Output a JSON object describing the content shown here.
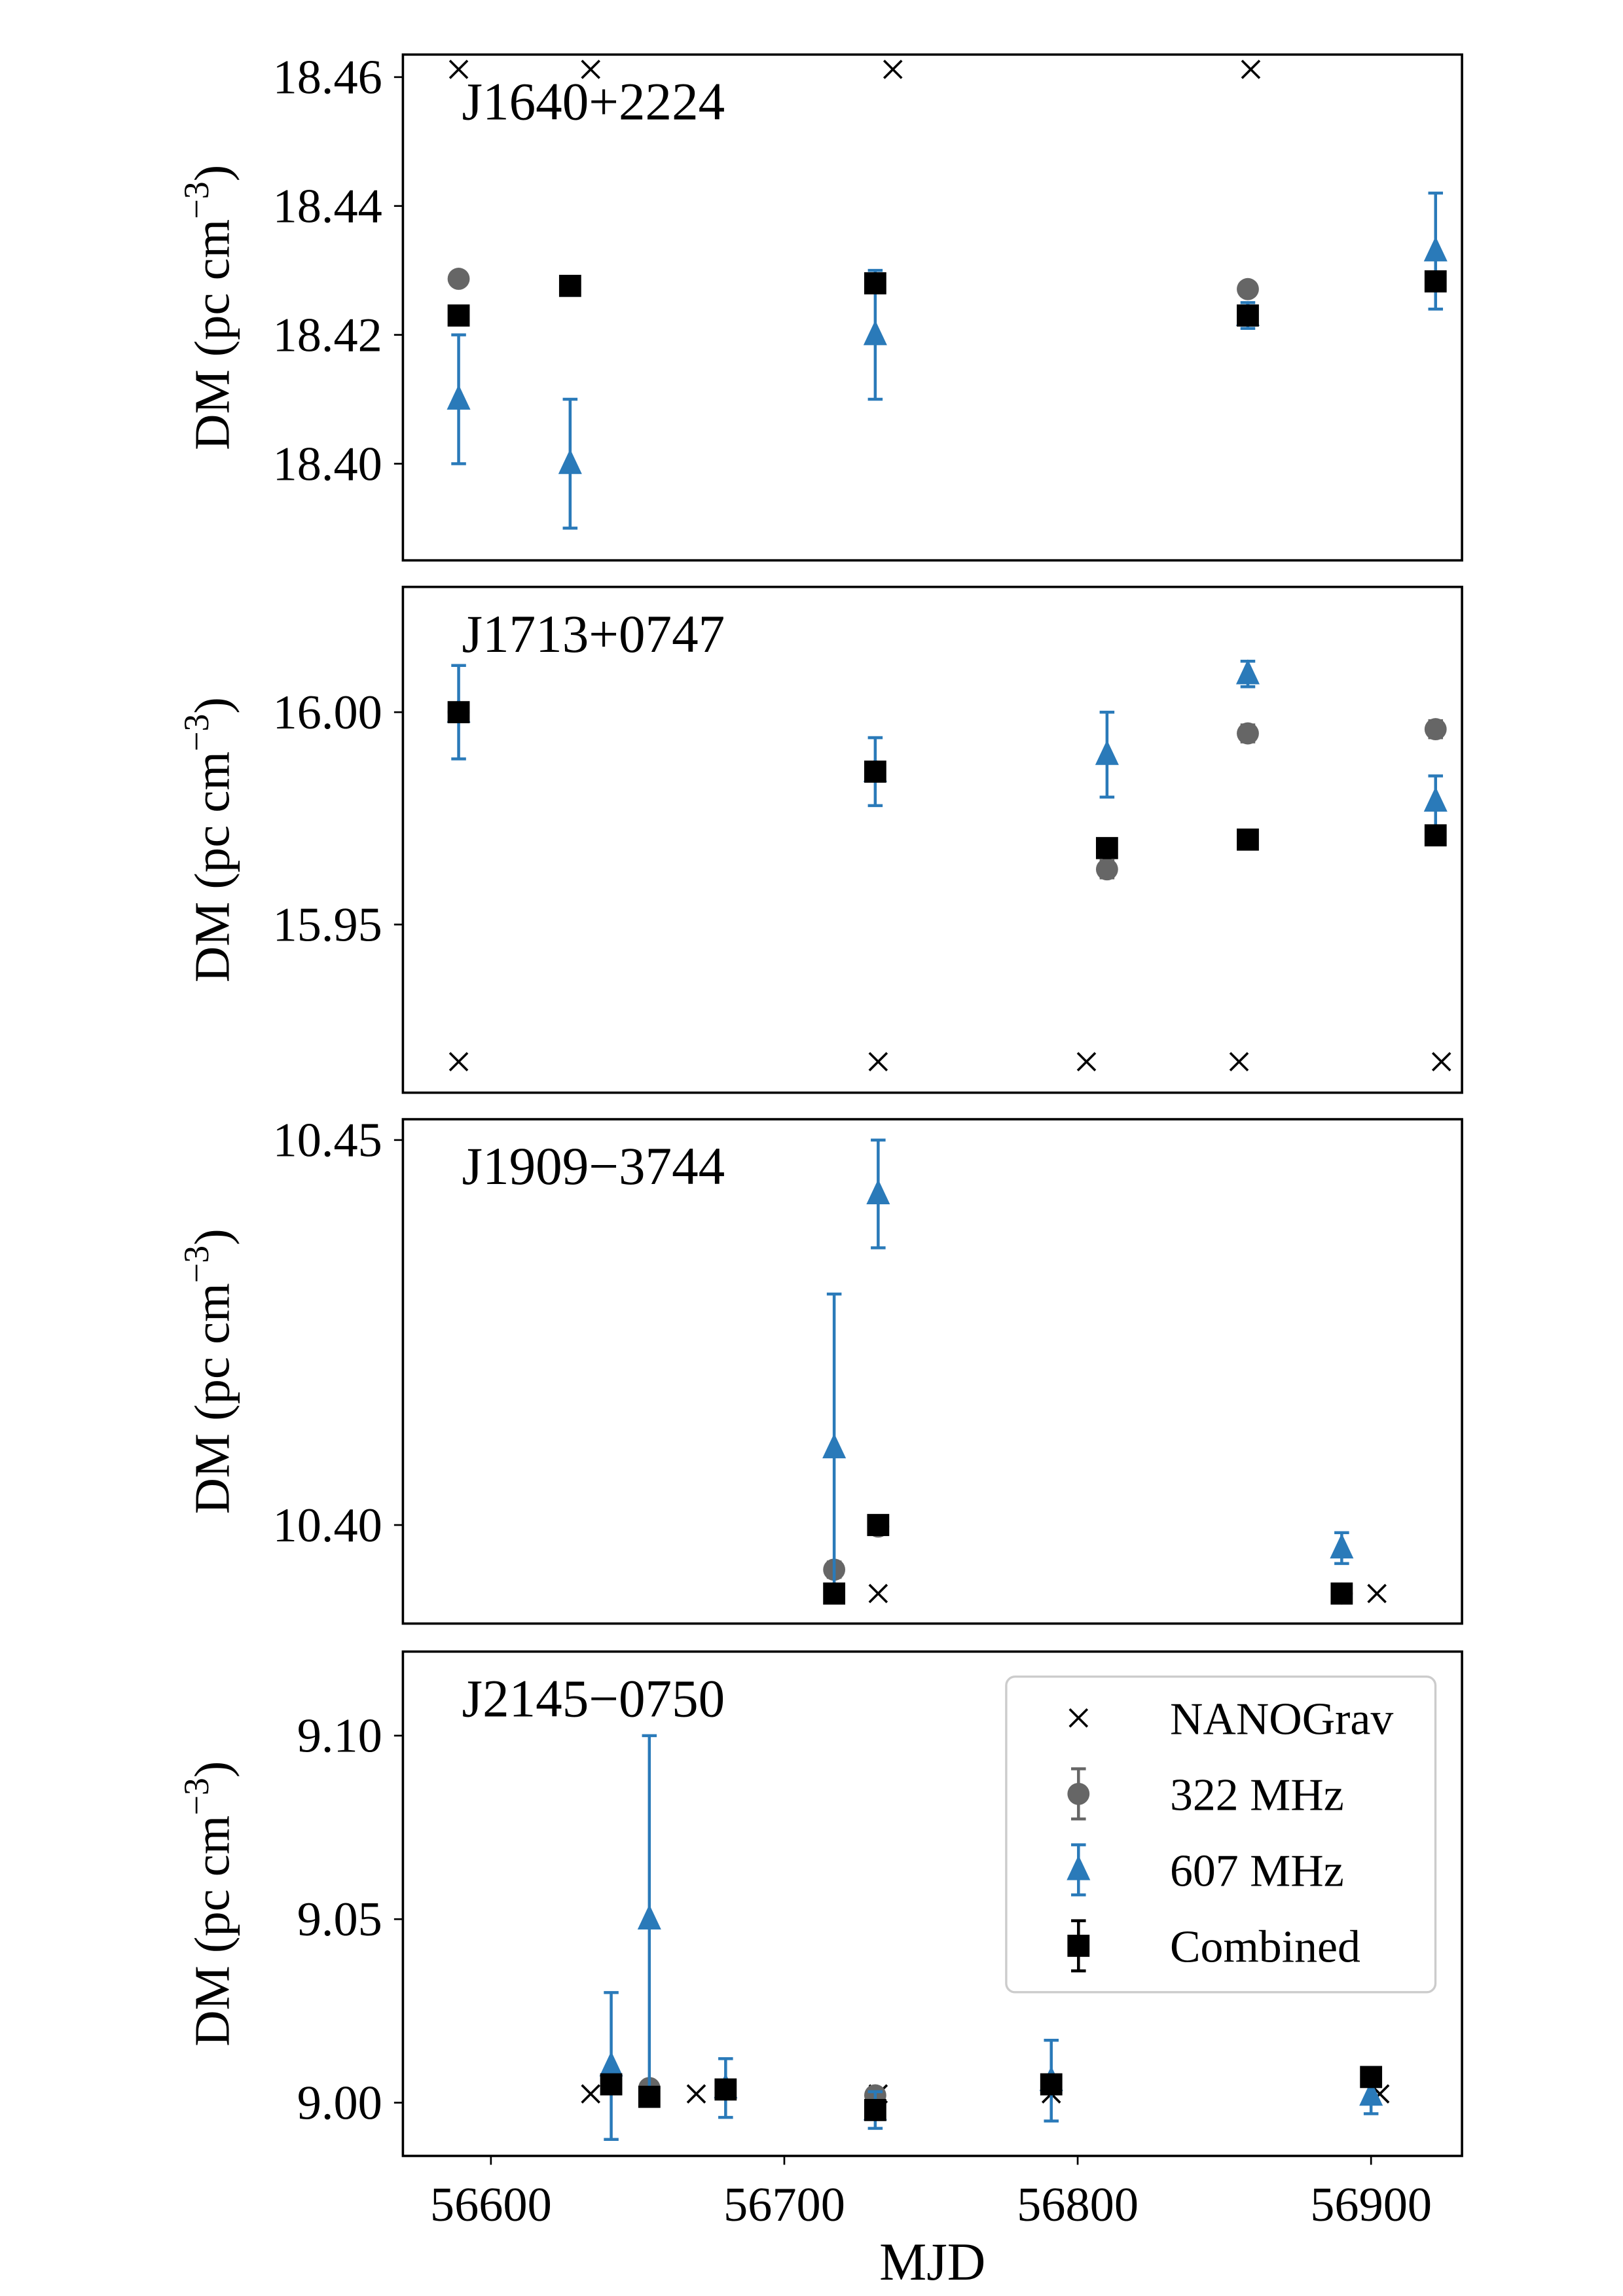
{
  "colors": {
    "nanograv": "#000000",
    "mhz322": "#666666",
    "mhz607": "#2a7ab9",
    "combined": "#000000"
  },
  "legend": {
    "placement": "upper-right of bottom panel",
    "entries": [
      {
        "key": "nanograv",
        "label": "NANOGrav",
        "marker": "x"
      },
      {
        "key": "mhz322",
        "label": "322 MHz",
        "marker": "circle"
      },
      {
        "key": "mhz607",
        "label": "607 MHz",
        "marker": "triangle"
      },
      {
        "key": "combined",
        "label": "Combined",
        "marker": "square"
      }
    ]
  },
  "shared": {
    "xlabel": "MJD",
    "ylabel": "DM (pc cm−3)",
    "xlim": [
      56570,
      56931
    ],
    "xticks": [
      56600,
      56700,
      56800,
      56900
    ]
  },
  "chart_data": [
    {
      "type": "scatter",
      "title": "J1640+2224",
      "ylim": [
        18.385,
        18.4635
      ],
      "yticks": [
        "18.40",
        "18.42",
        "18.44",
        "18.46"
      ],
      "series": [
        {
          "key": "nanograv",
          "points": [
            [
              56589,
              18.4612
            ],
            [
              56634,
              18.4612
            ],
            [
              56737,
              18.4612
            ],
            [
              56859,
              18.4612
            ]
          ]
        },
        {
          "key": "mhz322",
          "points": [
            [
              56589,
              18.4287,
              0.001
            ],
            [
              56858,
              18.4271,
              0.001
            ]
          ]
        },
        {
          "key": "mhz607",
          "points": [
            [
              56589,
              18.41,
              0.01
            ],
            [
              56627,
              18.4,
              0.01
            ],
            [
              56731,
              18.42,
              0.01
            ],
            [
              56858,
              18.423,
              0.002
            ],
            [
              56922,
              18.433,
              0.009
            ]
          ]
        },
        {
          "key": "combined",
          "points": [
            [
              56589,
              18.423,
              0.001
            ],
            [
              56627,
              18.4276,
              0.001
            ],
            [
              56731,
              18.428,
              0.001
            ],
            [
              56858,
              18.423,
              0.001
            ],
            [
              56922,
              18.4283,
              0.001
            ]
          ]
        }
      ]
    },
    {
      "type": "scatter",
      "title": "J1713+0747",
      "ylim": [
        15.9104,
        16.0295
      ],
      "yticks": [
        "15.95",
        "16.00"
      ],
      "series": [
        {
          "key": "nanograv",
          "points": [
            [
              56589,
              15.9177
            ],
            [
              56732,
              15.9177
            ],
            [
              56803,
              15.9177
            ],
            [
              56855,
              15.9177
            ],
            [
              56924,
              15.9177
            ]
          ]
        },
        {
          "key": "mhz322",
          "points": [
            [
              56589,
              16.0,
              0.002
            ],
            [
              56810,
              15.963,
              0.002
            ],
            [
              56858,
              15.995,
              0.002
            ],
            [
              56922,
              15.996,
              0.002
            ]
          ]
        },
        {
          "key": "mhz607",
          "points": [
            [
              56589,
              16.0,
              0.011
            ],
            [
              56731,
              15.986,
              0.008
            ],
            [
              56810,
              15.99,
              0.01
            ],
            [
              56858,
              16.009,
              0.003
            ],
            [
              56922,
              15.979,
              0.006
            ]
          ]
        },
        {
          "key": "combined",
          "points": [
            [
              56589,
              16.0,
              0.001
            ],
            [
              56731,
              15.986,
              0.001
            ],
            [
              56810,
              15.968,
              0.001
            ],
            [
              56858,
              15.97,
              0.001
            ],
            [
              56922,
              15.971,
              0.001
            ]
          ]
        }
      ]
    },
    {
      "type": "scatter",
      "title": "J1909−3744",
      "ylim": [
        10.3872,
        10.4527
      ],
      "yticks": [
        "10.40",
        "10.45"
      ],
      "series": [
        {
          "key": "nanograv",
          "points": [
            [
              56717,
              10.3911
            ],
            [
              56732,
              10.3911
            ],
            [
              56902,
              10.3911
            ]
          ]
        },
        {
          "key": "mhz322",
          "points": [
            [
              56717,
              10.3942,
              0.001
            ],
            [
              56732,
              10.3998,
              0.001
            ],
            [
              56890,
              10.3911,
              0.001
            ]
          ]
        },
        {
          "key": "mhz607",
          "points": [
            [
              56717,
              10.41,
              0.02
            ],
            [
              56732,
              10.443,
              0.007
            ],
            [
              56890,
              10.397,
              0.002
            ]
          ]
        },
        {
          "key": "combined",
          "points": [
            [
              56717,
              10.3911,
              0.0005
            ],
            [
              56732,
              10.4,
              0.0005
            ],
            [
              56890,
              10.3911,
              0.0005
            ]
          ]
        }
      ]
    },
    {
      "type": "scatter",
      "title": "J2145−0750",
      "ylim": [
        8.9855,
        9.1229
      ],
      "yticks": [
        "9.00",
        "9.05",
        "9.10"
      ],
      "series": [
        {
          "key": "nanograv",
          "points": [
            [
              56634,
              9.0024
            ],
            [
              56670,
              9.0024
            ],
            [
              56732,
              9.0024
            ],
            [
              56791,
              9.0024
            ],
            [
              56903,
              9.0024
            ]
          ]
        },
        {
          "key": "mhz322",
          "points": [
            [
              56654,
              9.004,
              0.001
            ],
            [
              56731,
              9.002,
              0.001
            ]
          ]
        },
        {
          "key": "mhz607",
          "points": [
            [
              56641,
              9.01,
              0.02
            ],
            [
              56654,
              9.05,
              0.05
            ],
            [
              56680,
              9.004,
              0.008
            ],
            [
              56731,
              8.998,
              0.005
            ],
            [
              56791,
              9.006,
              0.011
            ],
            [
              56900,
              9.002,
              0.005
            ]
          ]
        },
        {
          "key": "combined",
          "points": [
            [
              56641,
              9.005,
              0.001
            ],
            [
              56654,
              9.0016,
              0.001
            ],
            [
              56680,
              9.0036,
              0.001
            ],
            [
              56731,
              8.998,
              0.001
            ],
            [
              56791,
              9.005,
              0.001
            ],
            [
              56900,
              9.007,
              0.001
            ]
          ]
        }
      ]
    }
  ]
}
